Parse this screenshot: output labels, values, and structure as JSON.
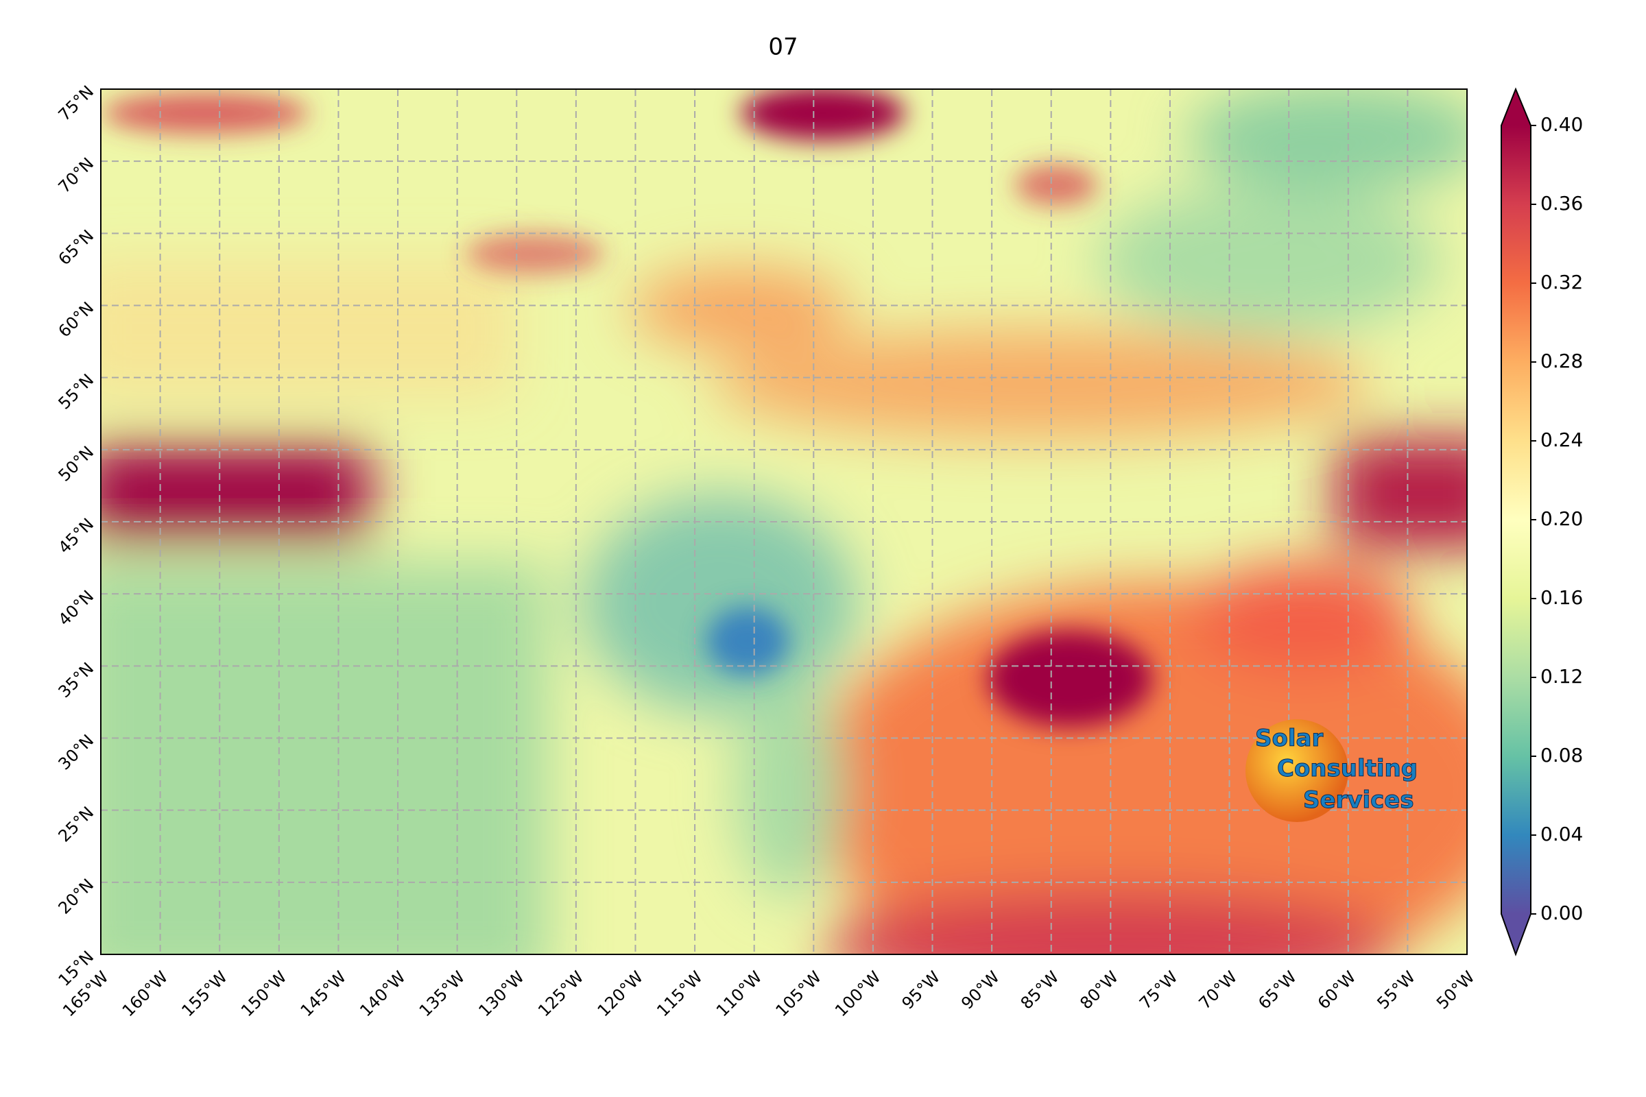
{
  "title": "07",
  "map": {
    "xlim": [
      -165,
      -50
    ],
    "ylim": [
      15,
      75
    ],
    "xticks": [
      {
        "value": -165,
        "label": "165°W"
      },
      {
        "value": -160,
        "label": "160°W"
      },
      {
        "value": -155,
        "label": "155°W"
      },
      {
        "value": -150,
        "label": "150°W"
      },
      {
        "value": -145,
        "label": "145°W"
      },
      {
        "value": -140,
        "label": "140°W"
      },
      {
        "value": -135,
        "label": "135°W"
      },
      {
        "value": -130,
        "label": "130°W"
      },
      {
        "value": -125,
        "label": "125°W"
      },
      {
        "value": -120,
        "label": "120°W"
      },
      {
        "value": -115,
        "label": "115°W"
      },
      {
        "value": -110,
        "label": "110°W"
      },
      {
        "value": -105,
        "label": "105°W"
      },
      {
        "value": -100,
        "label": "100°W"
      },
      {
        "value": -95,
        "label": "95°W"
      },
      {
        "value": -90,
        "label": "90°W"
      },
      {
        "value": -85,
        "label": "85°W"
      },
      {
        "value": -80,
        "label": "80°W"
      },
      {
        "value": -75,
        "label": "75°W"
      },
      {
        "value": -70,
        "label": "70°W"
      },
      {
        "value": -65,
        "label": "65°W"
      },
      {
        "value": -60,
        "label": "60°W"
      },
      {
        "value": -55,
        "label": "55°W"
      },
      {
        "value": -50,
        "label": "50°W"
      }
    ],
    "yticks": [
      {
        "value": 15,
        "label": "15°N"
      },
      {
        "value": 20,
        "label": "20°N"
      },
      {
        "value": 25,
        "label": "25°N"
      },
      {
        "value": 30,
        "label": "30°N"
      },
      {
        "value": 35,
        "label": "35°N"
      },
      {
        "value": 40,
        "label": "40°N"
      },
      {
        "value": 45,
        "label": "45°N"
      },
      {
        "value": 50,
        "label": "50°N"
      },
      {
        "value": 55,
        "label": "55°N"
      },
      {
        "value": 60,
        "label": "60°N"
      },
      {
        "value": 65,
        "label": "65°N"
      },
      {
        "value": 70,
        "label": "70°N"
      },
      {
        "value": 75,
        "label": "75°N"
      }
    ],
    "grid": true
  },
  "colorbar": {
    "lim": [
      0,
      0.4
    ],
    "ticks": [
      {
        "value": 0,
        "label": "0.00"
      },
      {
        "value": 0.04,
        "label": "0.04"
      },
      {
        "value": 0.08,
        "label": "0.08"
      },
      {
        "value": 0.12,
        "label": "0.12"
      },
      {
        "value": 0.16,
        "label": "0.16"
      },
      {
        "value": 0.2,
        "label": "0.20"
      },
      {
        "value": 0.24,
        "label": "0.24"
      },
      {
        "value": 0.28,
        "label": "0.28"
      },
      {
        "value": 0.32,
        "label": "0.32"
      },
      {
        "value": 0.36,
        "label": "0.36"
      },
      {
        "value": 0.4,
        "label": "0.40"
      }
    ]
  },
  "logo": {
    "line1": "Solar",
    "line2": "Consulting",
    "line3": "Services"
  }
}
